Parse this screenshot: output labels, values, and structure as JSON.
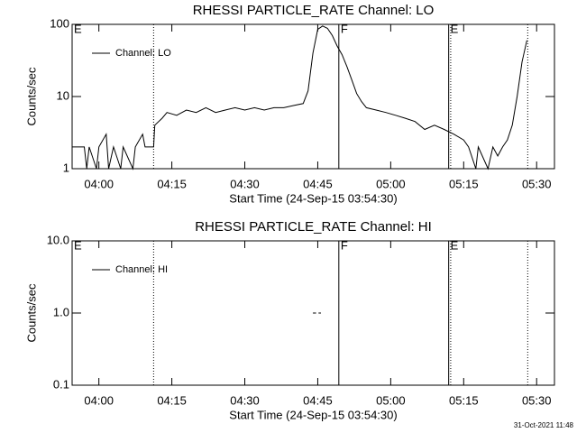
{
  "chart_data": [
    {
      "type": "line",
      "title": "RHESSI PARTICLE_RATE Channel: LO",
      "x_label": "Start Time (24-Sep-15 03:54:30)",
      "y_label": "Counts/sec",
      "xlim": [
        "03:54:30",
        "05:33:40"
      ],
      "xticks": [
        "04:00",
        "04:15",
        "04:30",
        "04:45",
        "05:00",
        "05:15",
        "05:30"
      ],
      "ylim": [
        1,
        100
      ],
      "yticks": [
        1,
        10,
        100
      ],
      "log_y": true,
      "legend": "upper left",
      "annotations": [
        {
          "x": "03:54:30",
          "label": "E"
        },
        {
          "x": "04:11:15",
          "style": "dotted"
        },
        {
          "x": "04:49:20",
          "style": "solid",
          "label": "F"
        },
        {
          "x": "05:11:55",
          "style": "solid",
          "label": "E"
        },
        {
          "x": "05:12:20",
          "style": "dotted"
        },
        {
          "x": "05:28:10",
          "style": "dotted"
        }
      ],
      "series": [
        {
          "name": "Channel: LO",
          "color": "#000000",
          "x": [
            "03:54:30",
            "03:57:00",
            "03:57:30",
            "03:58:00",
            "03:59:30",
            "04:00:00",
            "04:01:30",
            "04:02:00",
            "04:03:00",
            "04:04:30",
            "04:05:00",
            "04:07:00",
            "04:07:30",
            "04:09:00",
            "04:09:30",
            "04:11:15",
            "04:11:30",
            "04:13:00",
            "04:14:00",
            "04:16:00",
            "04:18:00",
            "04:20:00",
            "04:22:00",
            "04:24:00",
            "04:26:00",
            "04:28:00",
            "04:30:00",
            "04:32:00",
            "04:34:00",
            "04:36:00",
            "04:38:00",
            "04:40:00",
            "04:42:00",
            "04:43:00",
            "04:44:00",
            "04:45:00",
            "04:46:00",
            "04:47:00",
            "04:48:00",
            "04:49:00",
            "04:50:00",
            "04:51:00",
            "04:52:00",
            "04:53:00",
            "04:54:00",
            "04:55:00",
            "04:57:00",
            "04:59:00",
            "05:01:00",
            "05:03:00",
            "05:05:00",
            "05:07:00",
            "05:09:00",
            "05:11:00",
            "05:13:00",
            "05:15:00",
            "05:16:00",
            "05:17:30",
            "05:18:00",
            "05:20:00",
            "05:21:00",
            "05:22:00",
            "05:23:00",
            "05:24:00",
            "05:25:00",
            "05:26:00",
            "05:27:00",
            "05:28:00"
          ],
          "values": [
            2,
            2,
            1,
            2,
            1,
            2,
            3,
            1,
            2,
            1,
            2,
            1,
            2,
            3,
            2,
            2,
            4,
            5,
            6,
            5.5,
            6.5,
            6,
            7,
            6,
            6.5,
            7,
            6.5,
            7,
            6.5,
            7,
            7,
            7.5,
            8,
            12,
            40,
            85,
            95,
            88,
            70,
            50,
            38,
            26,
            17,
            11,
            8.5,
            7,
            6.5,
            6,
            5.5,
            5,
            4.5,
            3.5,
            4,
            3.5,
            3,
            2.5,
            2,
            1,
            2,
            1,
            2,
            1.5,
            2,
            2.5,
            4,
            10,
            30,
            60
          ]
        }
      ]
    },
    {
      "type": "line",
      "title": "RHESSI PARTICLE_RATE Channel: HI",
      "x_label": "Start Time (24-Sep-15 03:54:30)",
      "y_label": "Counts/sec",
      "xlim": [
        "03:54:30",
        "05:33:40"
      ],
      "xticks": [
        "04:00",
        "04:15",
        "04:30",
        "04:45",
        "05:00",
        "05:15",
        "05:30"
      ],
      "ylim": [
        0.1,
        10
      ],
      "yticks": [
        {
          "value": 0.1,
          "label": "0.1"
        },
        {
          "value": 1,
          "label": "1.0"
        },
        {
          "value": 10,
          "label": "10.0"
        }
      ],
      "log_y": true,
      "legend": "upper left",
      "annotations": [
        {
          "x": "03:54:30",
          "label": "E"
        },
        {
          "x": "04:11:15",
          "style": "dotted"
        },
        {
          "x": "04:49:20",
          "style": "solid",
          "label": "F"
        },
        {
          "x": "05:11:55",
          "style": "solid",
          "label": "E"
        },
        {
          "x": "05:12:20",
          "style": "dotted"
        },
        {
          "x": "05:28:10",
          "style": "dotted"
        }
      ],
      "series": [
        {
          "name": "Channel: HI",
          "color": "#000000",
          "x": [
            "04:44:00",
            "04:44:40",
            "04:45:00",
            "04:45:10",
            "04:45:40"
          ],
          "values": [
            1,
            1,
            null,
            1,
            1
          ]
        }
      ]
    }
  ],
  "footer": "31-Oct-2021 11:48"
}
